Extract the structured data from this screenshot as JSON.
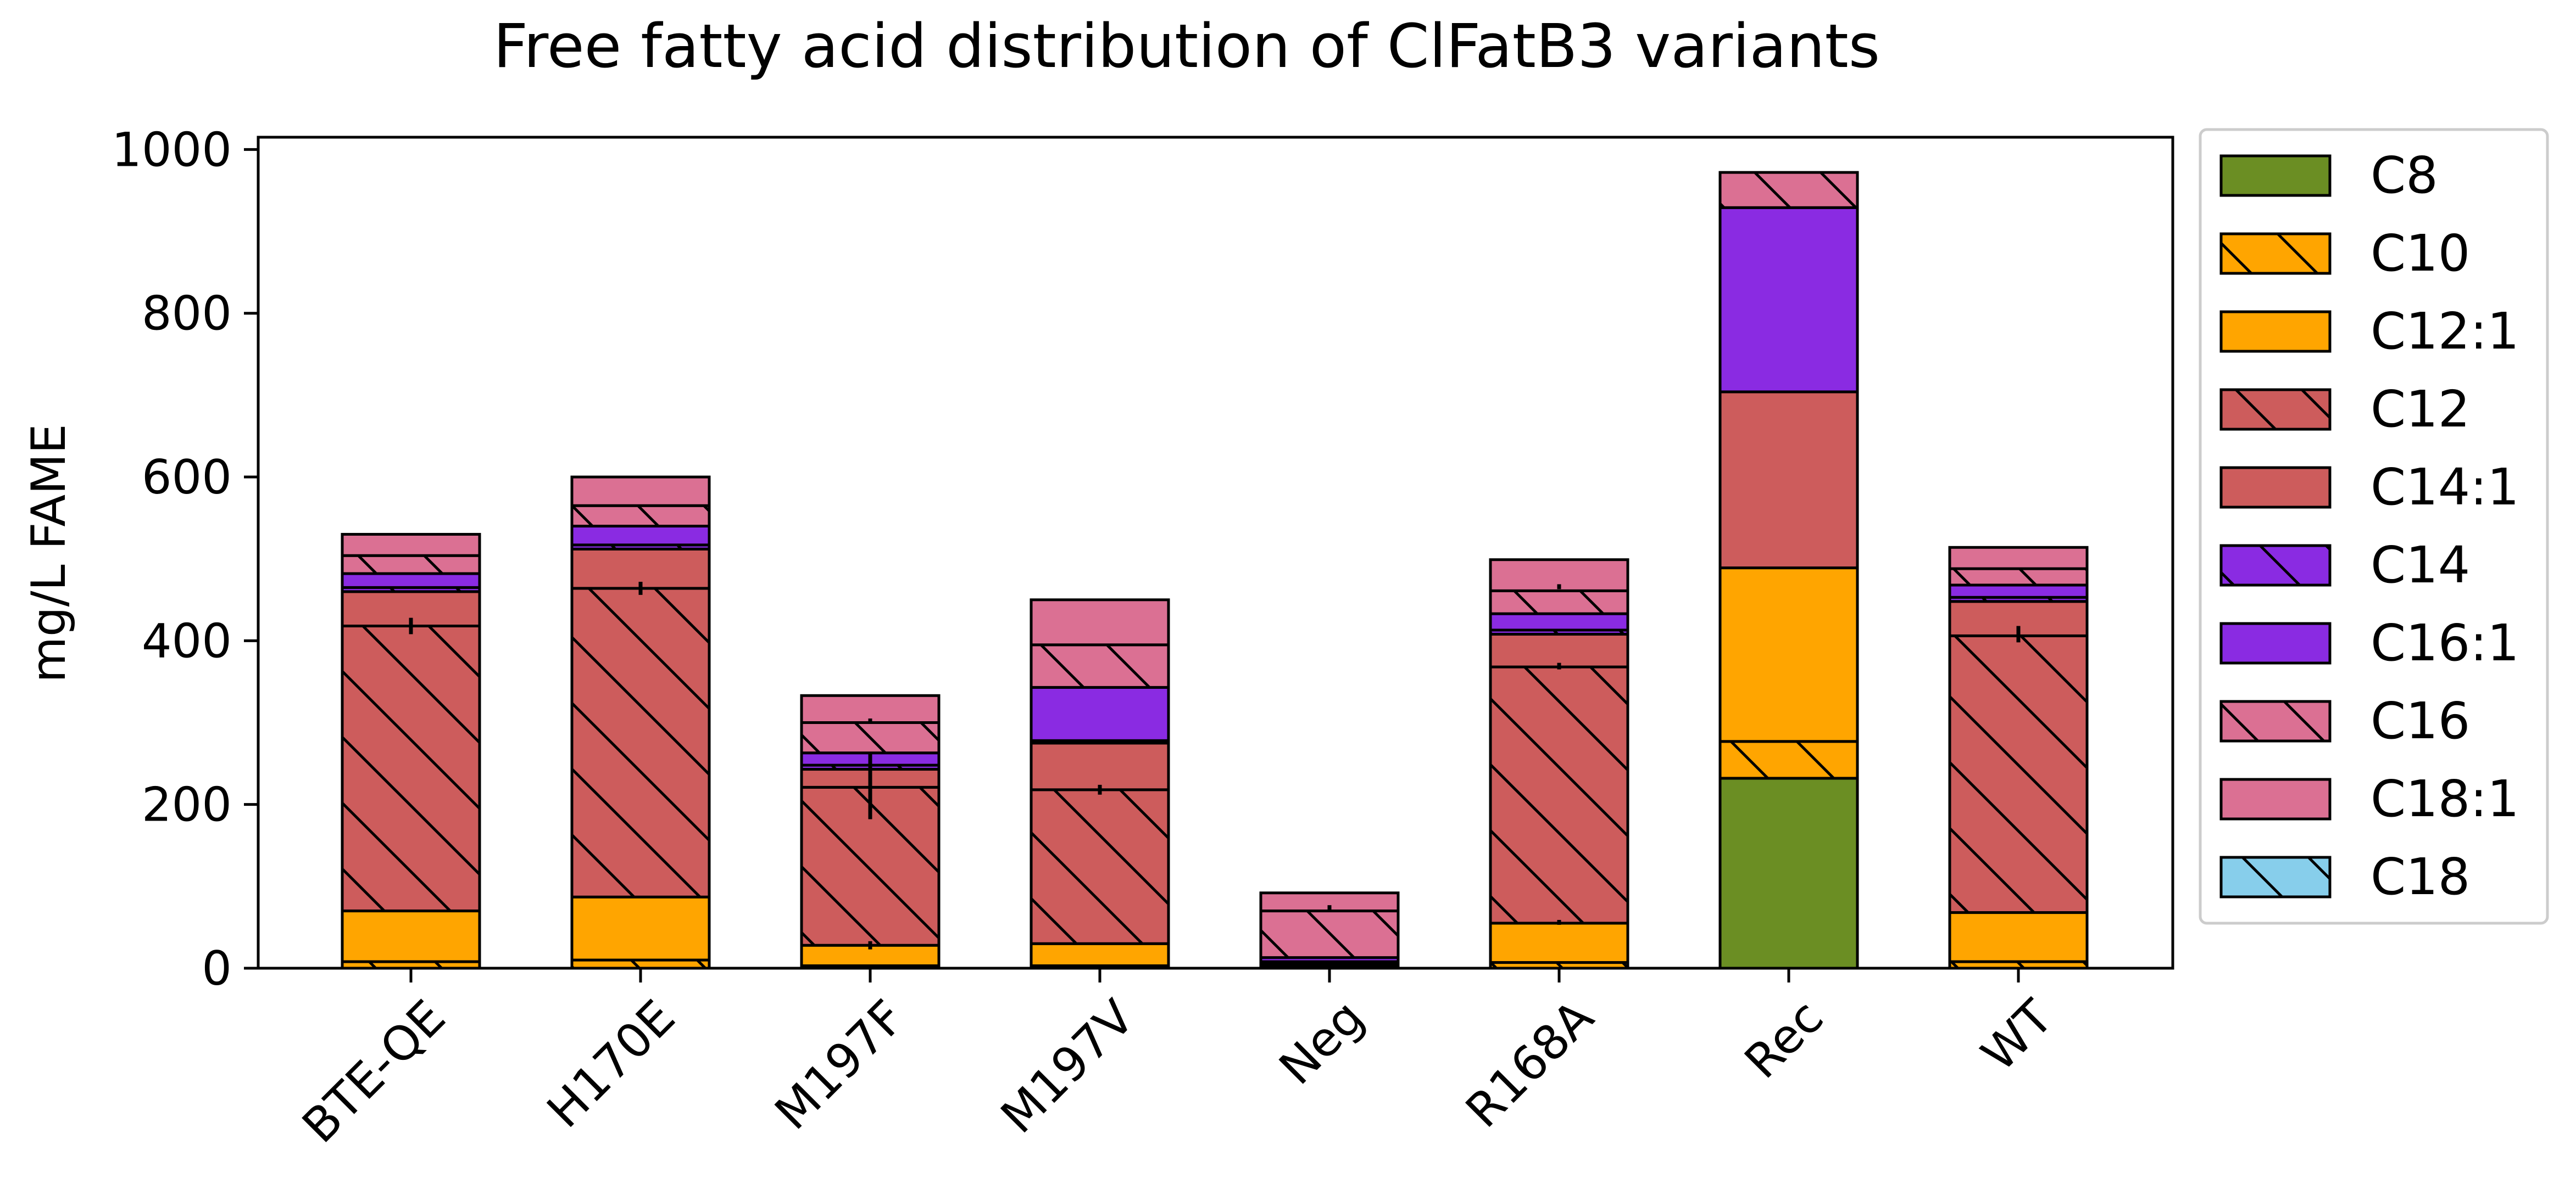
{
  "chart_data": {
    "type": "bar",
    "stacked": true,
    "title": "Free fatty acid distribution of ClFatB3 variants",
    "xlabel": "",
    "ylabel": "mg/L FAME",
    "ylim": [
      0,
      1015
    ],
    "yticks": [
      0,
      200,
      400,
      600,
      800,
      1000
    ],
    "grid": false,
    "legend_position": "outside-right",
    "categories": [
      "BTE-QE",
      "H170E",
      "M197F",
      "M197V",
      "Neg",
      "R168A",
      "Rec",
      "WT"
    ],
    "series": [
      {
        "name": "C8",
        "color": "#6b8e23",
        "hatch": false,
        "values": [
          0,
          0,
          0,
          0,
          0,
          0,
          232,
          0
        ]
      },
      {
        "name": "C10",
        "color": "#ffa500",
        "hatch": true,
        "values": [
          8,
          10,
          3,
          3,
          2,
          7,
          45,
          8
        ]
      },
      {
        "name": "C12:1",
        "color": "#ffa500",
        "hatch": false,
        "values": [
          62,
          77,
          25,
          27,
          3,
          48,
          212,
          60
        ]
      },
      {
        "name": "C12",
        "color": "#cd5c5c",
        "hatch": true,
        "values": [
          348,
          377,
          193,
          188,
          2,
          313,
          0,
          338
        ]
      },
      {
        "name": "C14:1",
        "color": "#cd5c5c",
        "hatch": false,
        "values": [
          42,
          48,
          22,
          57,
          0,
          40,
          215,
          42
        ]
      },
      {
        "name": "C14",
        "color": "#8a2be2",
        "hatch": true,
        "values": [
          5,
          5,
          5,
          3,
          1,
          5,
          0,
          5
        ]
      },
      {
        "name": "C16:1",
        "color": "#8a2be2",
        "hatch": false,
        "values": [
          17,
          23,
          15,
          65,
          5,
          20,
          225,
          15
        ]
      },
      {
        "name": "C16",
        "color": "#db7093",
        "hatch": true,
        "values": [
          22,
          25,
          37,
          52,
          57,
          28,
          43,
          20
        ]
      },
      {
        "name": "C18:1",
        "color": "#db7093",
        "hatch": false,
        "values": [
          26,
          35,
          33,
          55,
          22,
          38,
          0,
          26
        ]
      },
      {
        "name": "C18",
        "color": "#87ceeb",
        "hatch": true,
        "values": [
          0,
          0,
          0,
          0,
          0,
          0,
          0,
          0
        ]
      }
    ],
    "error_bars": [
      {
        "category": "BTE-QE",
        "y": 418,
        "err": 10
      },
      {
        "category": "H170E",
        "y": 464,
        "err": 8
      },
      {
        "category": "M197F",
        "y": 28,
        "err": 5
      },
      {
        "category": "M197F",
        "y": 222,
        "err": 40
      },
      {
        "category": "M197F",
        "y": 302,
        "err": 3
      },
      {
        "category": "M197V",
        "y": 218,
        "err": 6
      },
      {
        "category": "Neg",
        "y": 74,
        "err": 3
      },
      {
        "category": "R168A",
        "y": 56,
        "err": 3
      },
      {
        "category": "R168A",
        "y": 369,
        "err": 4
      },
      {
        "category": "R168A",
        "y": 466,
        "err": 3
      },
      {
        "category": "WT",
        "y": 408,
        "err": 10
      }
    ]
  }
}
